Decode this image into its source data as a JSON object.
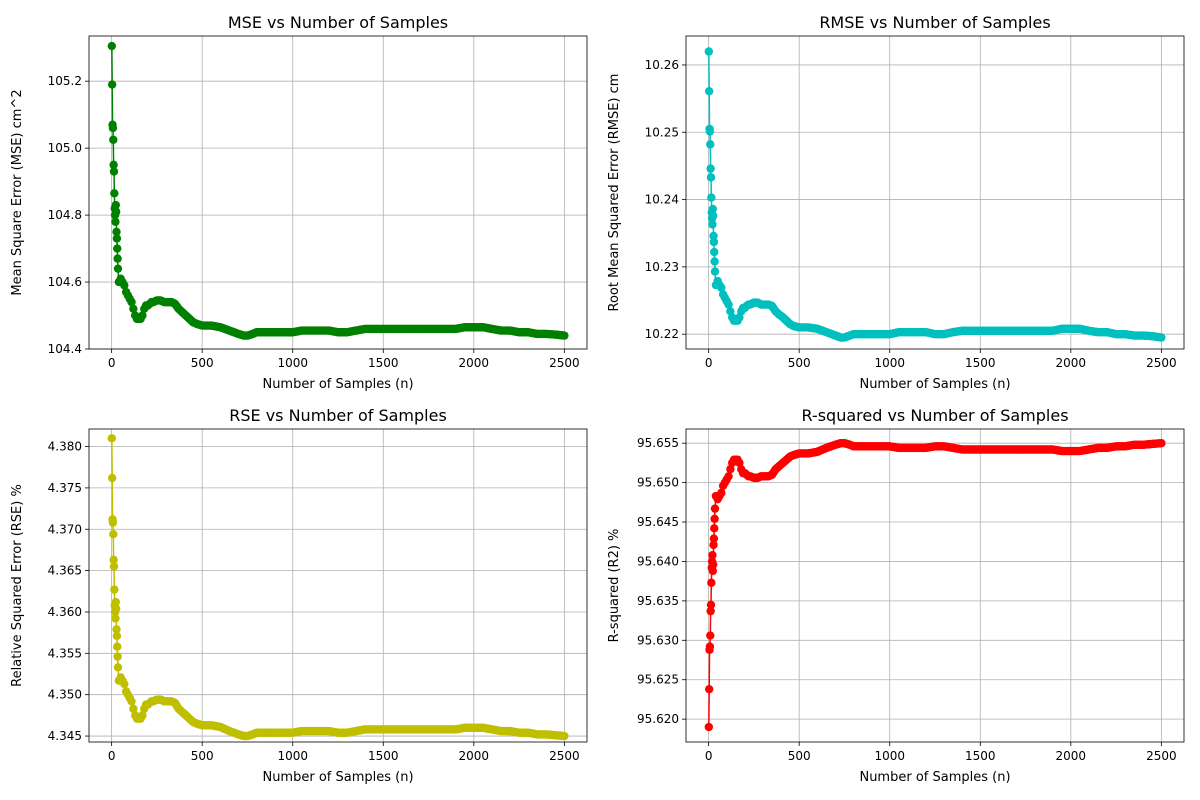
{
  "chart_data": [
    {
      "type": "line",
      "title": "MSE vs Number of Samples",
      "xlabel": "Number of Samples (n)",
      "ylabel": "Mean Square Error (MSE) cm^2",
      "xlim": [
        -125,
        2625
      ],
      "ylim": [
        104.4,
        105.335
      ],
      "xticks": [
        0,
        500,
        1000,
        1500,
        2000,
        2500
      ],
      "yticks": [
        104.4,
        104.6,
        104.8,
        105.0,
        105.2
      ],
      "ytick_labels": [
        "104.4",
        "104.6",
        "104.8",
        "105.0",
        "105.2"
      ],
      "grid": true,
      "color": "#008000",
      "marker": "circle",
      "series": [
        {
          "x": [
            1,
            3,
            5,
            7,
            9,
            11,
            13,
            15,
            17,
            19,
            21,
            23,
            25,
            27,
            29,
            31,
            33,
            35,
            40,
            50,
            60,
            70,
            80,
            90,
            100,
            110,
            120,
            130,
            140,
            150,
            160,
            170,
            180,
            190,
            200,
            210,
            220,
            230,
            250,
            270,
            290,
            310,
            330,
            350,
            370,
            390,
            410,
            430,
            450,
            470,
            500,
            550,
            600,
            650,
            700,
            730,
            750,
            780,
            800,
            850,
            900,
            950,
            1000,
            1050,
            1100,
            1150,
            1200,
            1250,
            1300,
            1350,
            1400,
            1450,
            1500,
            1550,
            1600,
            1650,
            1700,
            1750,
            1800,
            1850,
            1900,
            1950,
            2000,
            2050,
            2100,
            2150,
            2200,
            2250,
            2300,
            2350,
            2400,
            2450,
            2500
          ],
          "y": [
            105.305,
            105.19,
            105.07,
            105.06,
            105.025,
            104.95,
            104.93,
            104.865,
            104.82,
            104.8,
            104.78,
            104.83,
            104.81,
            104.75,
            104.73,
            104.7,
            104.67,
            104.64,
            104.6,
            104.61,
            104.6,
            104.59,
            104.57,
            104.56,
            104.55,
            104.54,
            104.52,
            104.5,
            104.49,
            104.49,
            104.49,
            104.5,
            104.52,
            104.53,
            104.53,
            104.535,
            104.54,
            104.54,
            104.545,
            104.545,
            104.54,
            104.54,
            104.54,
            104.535,
            104.52,
            104.51,
            104.5,
            104.49,
            104.48,
            104.475,
            104.47,
            104.47,
            104.465,
            104.455,
            104.445,
            104.44,
            104.44,
            104.445,
            104.45,
            104.45,
            104.45,
            104.45,
            104.45,
            104.455,
            104.455,
            104.455,
            104.455,
            104.45,
            104.45,
            104.455,
            104.46,
            104.46,
            104.46,
            104.46,
            104.46,
            104.46,
            104.46,
            104.46,
            104.46,
            104.46,
            104.46,
            104.465,
            104.465,
            104.465,
            104.46,
            104.455,
            104.455,
            104.45,
            104.45,
            104.445,
            104.445,
            104.443,
            104.44
          ]
        }
      ]
    },
    {
      "type": "line",
      "title": "RMSE vs Number of Samples",
      "xlabel": "Number of Samples (n)",
      "ylabel": "Root Mean Squared Error (RMSE) cm",
      "xlim": [
        -125,
        2625
      ],
      "ylim": [
        10.2178,
        10.2643
      ],
      "xticks": [
        0,
        500,
        1000,
        1500,
        2000,
        2500
      ],
      "yticks": [
        10.22,
        10.23,
        10.24,
        10.25,
        10.26
      ],
      "ytick_labels": [
        "10.22",
        "10.23",
        "10.24",
        "10.25",
        "10.26"
      ],
      "grid": true,
      "color": "#00bfbf",
      "marker": "circle",
      "series": [
        {
          "x": [
            1,
            3,
            5,
            7,
            9,
            11,
            13,
            15,
            17,
            19,
            21,
            23,
            25,
            27,
            29,
            31,
            33,
            35,
            40,
            50,
            60,
            70,
            80,
            90,
            100,
            110,
            120,
            130,
            140,
            150,
            160,
            170,
            180,
            190,
            200,
            210,
            220,
            230,
            250,
            270,
            290,
            310,
            330,
            350,
            370,
            390,
            410,
            430,
            450,
            470,
            500,
            550,
            600,
            650,
            700,
            730,
            750,
            780,
            800,
            850,
            900,
            950,
            1000,
            1050,
            1100,
            1150,
            1200,
            1250,
            1300,
            1350,
            1400,
            1450,
            1500,
            1550,
            1600,
            1650,
            1700,
            1750,
            1800,
            1850,
            1900,
            1950,
            2000,
            2050,
            2100,
            2150,
            2200,
            2250,
            2300,
            2350,
            2400,
            2450,
            2500
          ],
          "y": [
            10.262,
            10.2561,
            10.2505,
            10.2501,
            10.2482,
            10.2446,
            10.2433,
            10.2403,
            10.2381,
            10.2372,
            10.2363,
            10.2386,
            10.2376,
            10.2346,
            10.2337,
            10.2322,
            10.2308,
            10.2293,
            10.2273,
            10.2279,
            10.2273,
            10.2269,
            10.2259,
            10.2254,
            10.2249,
            10.2244,
            10.2234,
            10.2225,
            10.222,
            10.222,
            10.222,
            10.2225,
            10.2234,
            10.2239,
            10.2239,
            10.2242,
            10.2244,
            10.2244,
            10.2247,
            10.2247,
            10.2244,
            10.2244,
            10.2244,
            10.2242,
            10.2234,
            10.2229,
            10.2225,
            10.222,
            10.2215,
            10.2212,
            10.221,
            10.221,
            10.2208,
            10.2203,
            10.2198,
            10.2195,
            10.2195,
            10.2198,
            10.22,
            10.22,
            10.22,
            10.22,
            10.22,
            10.2203,
            10.2203,
            10.2203,
            10.2203,
            10.22,
            10.22,
            10.2203,
            10.2205,
            10.2205,
            10.2205,
            10.2205,
            10.2205,
            10.2205,
            10.2205,
            10.2205,
            10.2205,
            10.2205,
            10.2205,
            10.2208,
            10.2208,
            10.2208,
            10.2205,
            10.2203,
            10.2203,
            10.22,
            10.22,
            10.2198,
            10.2198,
            10.2197,
            10.2195
          ]
        }
      ]
    },
    {
      "type": "line",
      "title": "RSE vs Number of Samples",
      "xlabel": "Number of Samples (n)",
      "ylabel": "Relative Squared Error (RSE) %",
      "xlim": [
        -125,
        2625
      ],
      "ylim": [
        4.34428,
        4.38212
      ],
      "xticks": [
        0,
        500,
        1000,
        1500,
        2000,
        2500
      ],
      "yticks": [
        4.345,
        4.35,
        4.355,
        4.36,
        4.365,
        4.37,
        4.375,
        4.38
      ],
      "ytick_labels": [
        "4.345",
        "4.350",
        "4.355",
        "4.360",
        "4.365",
        "4.370",
        "4.375",
        "4.380"
      ],
      "grid": true,
      "color": "#bfbf00",
      "marker": "circle",
      "series": [
        {
          "x": [
            1,
            3,
            5,
            7,
            9,
            11,
            13,
            15,
            17,
            19,
            21,
            23,
            25,
            27,
            29,
            31,
            33,
            35,
            40,
            50,
            60,
            70,
            80,
            90,
            100,
            110,
            120,
            130,
            140,
            150,
            160,
            170,
            180,
            190,
            200,
            210,
            220,
            230,
            250,
            270,
            290,
            310,
            330,
            350,
            370,
            390,
            410,
            430,
            450,
            470,
            500,
            550,
            600,
            650,
            700,
            730,
            750,
            780,
            800,
            850,
            900,
            950,
            1000,
            1050,
            1100,
            1150,
            1200,
            1250,
            1300,
            1350,
            1400,
            1450,
            1500,
            1550,
            1600,
            1650,
            1700,
            1750,
            1800,
            1850,
            1900,
            1950,
            2000,
            2050,
            2100,
            2150,
            2200,
            2250,
            2300,
            2350,
            2400,
            2450,
            2500
          ],
          "y": [
            4.381,
            4.3762,
            4.3712,
            4.3708,
            4.3694,
            4.3663,
            4.3655,
            4.3627,
            4.3608,
            4.36,
            4.3592,
            4.3612,
            4.3604,
            4.3579,
            4.3571,
            4.3558,
            4.3546,
            4.3533,
            4.3517,
            4.3521,
            4.3517,
            4.3513,
            4.3504,
            4.35,
            4.3496,
            4.3492,
            4.3483,
            4.3475,
            4.3471,
            4.3471,
            4.3471,
            4.3475,
            4.3483,
            4.3488,
            4.3488,
            4.349,
            4.3492,
            4.3492,
            4.3494,
            4.3494,
            4.3492,
            4.3492,
            4.3492,
            4.349,
            4.3483,
            4.3479,
            4.3475,
            4.3471,
            4.3467,
            4.3465,
            4.3463,
            4.3463,
            4.3461,
            4.3456,
            4.3452,
            4.345,
            4.345,
            4.3452,
            4.3454,
            4.3454,
            4.3454,
            4.3454,
            4.3454,
            4.3456,
            4.3456,
            4.3456,
            4.3456,
            4.3454,
            4.3454,
            4.3456,
            4.3458,
            4.3458,
            4.3458,
            4.3458,
            4.3458,
            4.3458,
            4.3458,
            4.3458,
            4.3458,
            4.3458,
            4.3458,
            4.346,
            4.346,
            4.346,
            4.3458,
            4.3456,
            4.3456,
            4.3454,
            4.3454,
            4.3452,
            4.3452,
            4.3451,
            4.345
          ]
        }
      ]
    },
    {
      "type": "line",
      "title": "R-squared vs Number of Samples",
      "xlabel": "Number of Samples (n)",
      "ylabel": "R-squared (R2) %",
      "xlim": [
        -125,
        2625
      ],
      "ylim": [
        95.6171,
        95.6568
      ],
      "xticks": [
        0,
        500,
        1000,
        1500,
        2000,
        2500
      ],
      "yticks": [
        95.62,
        95.625,
        95.63,
        95.635,
        95.64,
        95.645,
        95.65,
        95.655
      ],
      "ytick_labels": [
        "95.620",
        "95.625",
        "95.630",
        "95.635",
        "95.640",
        "95.645",
        "95.650",
        "95.655"
      ],
      "grid": true,
      "color": "#ff0000",
      "marker": "circle",
      "series": [
        {
          "x": [
            1,
            3,
            5,
            7,
            9,
            11,
            13,
            15,
            17,
            19,
            21,
            23,
            25,
            27,
            29,
            31,
            33,
            35,
            40,
            50,
            60,
            70,
            80,
            90,
            100,
            110,
            120,
            130,
            140,
            150,
            160,
            170,
            180,
            190,
            200,
            210,
            220,
            230,
            250,
            270,
            290,
            310,
            330,
            350,
            370,
            390,
            410,
            430,
            450,
            470,
            500,
            550,
            600,
            650,
            700,
            730,
            750,
            780,
            800,
            850,
            900,
            950,
            1000,
            1050,
            1100,
            1150,
            1200,
            1250,
            1300,
            1350,
            1400,
            1450,
            1500,
            1550,
            1600,
            1650,
            1700,
            1750,
            1800,
            1850,
            1900,
            1950,
            2000,
            2050,
            2100,
            2150,
            2200,
            2250,
            2300,
            2350,
            2400,
            2450,
            2500
          ],
          "y": [
            95.619,
            95.6238,
            95.6288,
            95.6292,
            95.6306,
            95.6337,
            95.6345,
            95.6373,
            95.6392,
            95.64,
            95.6408,
            95.6388,
            95.6396,
            95.6421,
            95.6429,
            95.6442,
            95.6454,
            95.6467,
            95.6483,
            95.6479,
            95.6483,
            95.6487,
            95.6496,
            95.65,
            95.6504,
            95.6508,
            95.6517,
            95.6525,
            95.6529,
            95.6529,
            95.6529,
            95.6525,
            95.6517,
            95.6512,
            95.6512,
            95.651,
            95.6508,
            95.6508,
            95.6506,
            95.6506,
            95.6508,
            95.6508,
            95.6508,
            95.651,
            95.6517,
            95.6521,
            95.6525,
            95.6529,
            95.6533,
            95.6535,
            95.6537,
            95.6537,
            95.6539,
            95.6544,
            95.6548,
            95.655,
            95.655,
            95.6548,
            95.6546,
            95.6546,
            95.6546,
            95.6546,
            95.6546,
            95.6544,
            95.6544,
            95.6544,
            95.6544,
            95.6546,
            95.6546,
            95.6544,
            95.6542,
            95.6542,
            95.6542,
            95.6542,
            95.6542,
            95.6542,
            95.6542,
            95.6542,
            95.6542,
            95.6542,
            95.6542,
            95.654,
            95.654,
            95.654,
            95.6542,
            95.6544,
            95.6544,
            95.6546,
            95.6546,
            95.6548,
            95.6548,
            95.6549,
            95.655
          ]
        }
      ]
    }
  ]
}
